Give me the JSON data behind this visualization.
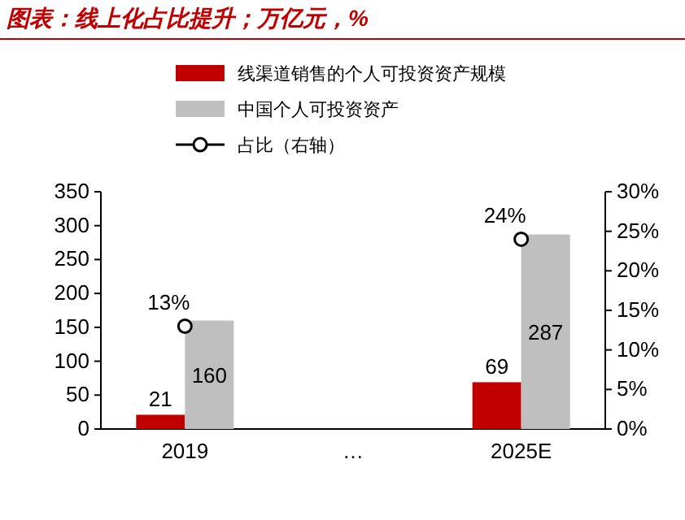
{
  "chart_data": {
    "type": "bar",
    "title": "图表：线上化占比提升；万亿元，%",
    "categories": [
      "2019",
      "…",
      "2025E"
    ],
    "series": [
      {
        "name": "线渠道销售的个人可投资资产规模",
        "color": "#c00000",
        "values": [
          21,
          null,
          69
        ],
        "value_labels": [
          "21",
          null,
          "69"
        ]
      },
      {
        "name": "中国个人可投资资产",
        "color": "#bfbfbf",
        "values": [
          160,
          null,
          287
        ],
        "value_labels": [
          "160",
          null,
          "287"
        ]
      },
      {
        "name": "占比（右轴）",
        "type": "scatter",
        "axis": "y2",
        "color": "#000000",
        "marker": "circle",
        "values": [
          13,
          null,
          24
        ],
        "value_labels": [
          "13%",
          null,
          "24%"
        ]
      }
    ],
    "ylim": [
      0,
      350
    ],
    "yticks": [
      0,
      50,
      100,
      150,
      200,
      250,
      300,
      350
    ],
    "y2lim": [
      0,
      30
    ],
    "y2ticks": [
      {
        "value": 0,
        "label": "0%"
      },
      {
        "value": 5,
        "label": "5%"
      },
      {
        "value": 10,
        "label": "10%"
      },
      {
        "value": 15,
        "label": "15%"
      },
      {
        "value": 20,
        "label": "20%"
      },
      {
        "value": 25,
        "label": "25%"
      },
      {
        "value": 30,
        "label": "30%"
      }
    ],
    "legend": "top",
    "grid": false
  }
}
